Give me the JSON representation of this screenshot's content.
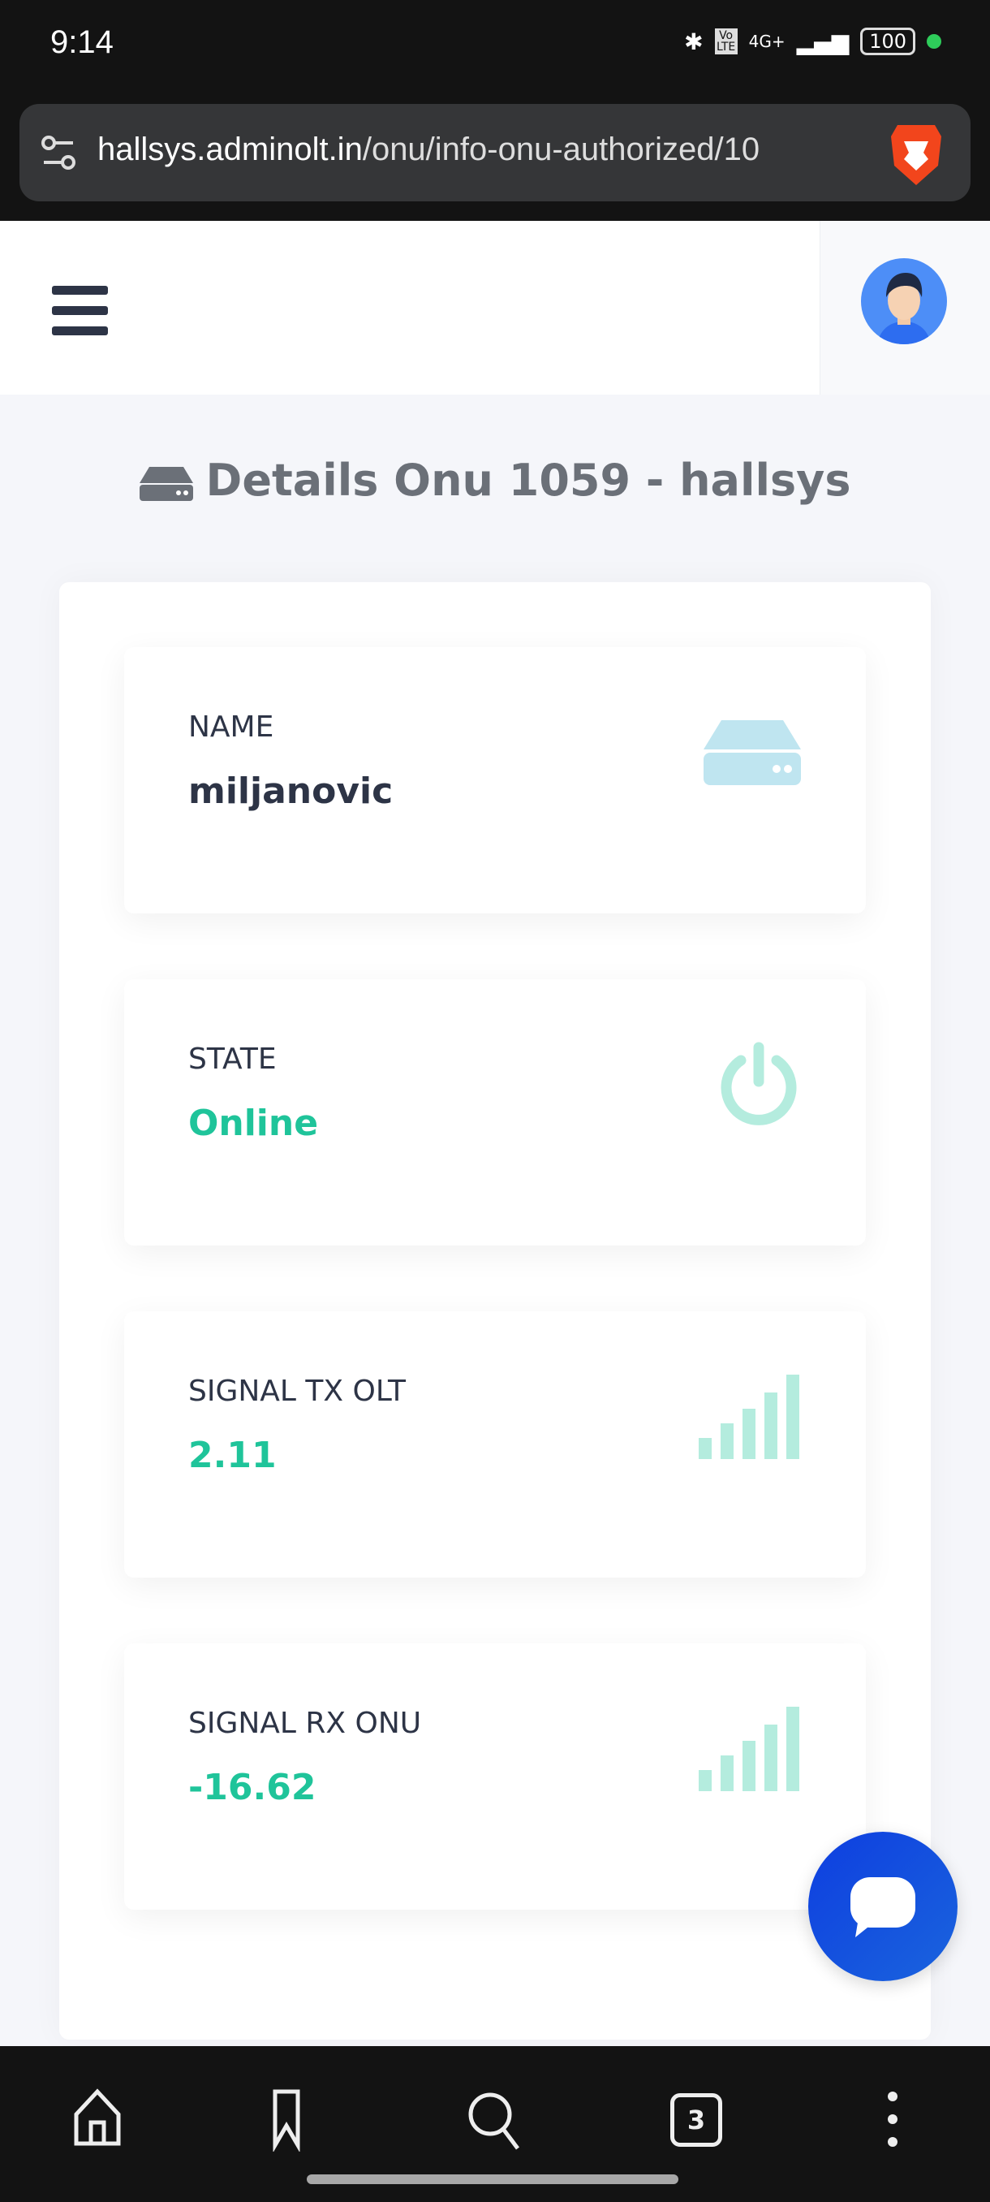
{
  "status_bar": {
    "time": "9:14",
    "network": "4G+",
    "volte": "Vo LTE",
    "battery": "100"
  },
  "browser": {
    "url_host": "hallsys.adminolt.in",
    "url_path": "/onu/info-onu-authorized/10",
    "tabs_count": "3"
  },
  "page": {
    "title": "Details Onu 1059 - hallsys"
  },
  "cards": [
    {
      "label": "NAME",
      "value": "miljanovic",
      "icon": "hdd-icon",
      "value_color": "#2d3446"
    },
    {
      "label": "STATE",
      "value": "Online",
      "icon": "power-icon",
      "value_color": "#1fc49a"
    },
    {
      "label": "SIGNAL TX OLT",
      "value": "2.11",
      "icon": "signal-icon",
      "value_color": "#1fc49a"
    },
    {
      "label": "SIGNAL RX ONU",
      "value": "-16.62",
      "icon": "signal-icon",
      "value_color": "#1fc49a"
    }
  ],
  "colors": {
    "accent": "#1fc49a",
    "icon_tint": "#b4ecde",
    "hdd_tint": "#bfe5f0",
    "fab": "#1447e0"
  }
}
